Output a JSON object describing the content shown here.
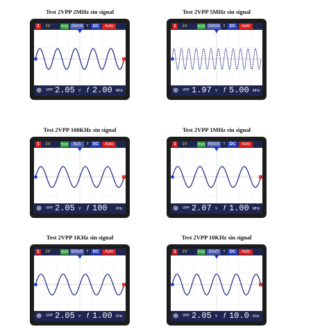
{
  "panels": [
    {
      "title": "Test 2VPP 2MHz sin signal",
      "channel": "1",
      "volts": "1V",
      "run": "RUN",
      "timebase": "250nS",
      "coupling": "DC",
      "trigger": "Auto",
      "vpp": "2.05",
      "freq": "2.00",
      "freq_unit": "MHz",
      "cycles": 5,
      "wave_color": "#1a237e",
      "show_marker": true
    },
    {
      "title": "Test 2VPP 5MHz sin signal",
      "channel": "1",
      "volts": "1V",
      "run": "RUN",
      "timebase": "250nS",
      "coupling": "DC",
      "trigger": "Auto",
      "vpp": "1.97",
      "freq": "5.00",
      "freq_unit": "MHz",
      "cycles": 12,
      "wave_color": "#1a237e",
      "show_marker": false
    },
    {
      "title": "Test 2VPP 100KHz sin signal",
      "channel": "1",
      "volts": "1V",
      "run": "RUN",
      "timebase": "5uS",
      "coupling": "DC",
      "trigger": "Auto",
      "vpp": "2.05",
      "freq": "100",
      "freq_unit": "KHz",
      "cycles": 4,
      "wave_color": "#1a237e",
      "show_marker": true
    },
    {
      "title": "Test 2VPP 1MHz sin signal",
      "channel": "1",
      "volts": "1V",
      "run": "RUN",
      "timebase": "500nS",
      "coupling": "DC",
      "trigger": "Auto",
      "vpp": "2.07",
      "freq": "1.00",
      "freq_unit": "MHz",
      "cycles": 4,
      "wave_color": "#1a237e",
      "show_marker": true
    },
    {
      "title": "Test 2VPP 1KHz sin signal",
      "channel": "1",
      "volts": "1V",
      "run": "RUN",
      "timebase": "500uS",
      "coupling": "DC",
      "trigger": "Auto",
      "vpp": "2.05",
      "freq": "1.00",
      "freq_unit": "KHz",
      "cycles": 4,
      "wave_color": "#1a237e",
      "show_marker": true
    },
    {
      "title": "Test 2VPP 10KHz sin signal",
      "channel": "1",
      "volts": "1V",
      "run": "RUN",
      "timebase": "50uS",
      "coupling": "DC",
      "trigger": "Auto",
      "vpp": "2.05",
      "freq": "10.0",
      "freq_unit": "KHz",
      "cycles": 4.5,
      "wave_color": "#1a237e",
      "show_marker": true
    }
  ],
  "labels": {
    "vpp_label": "VPP",
    "volt_unit": "V",
    "trigger_marker": "T"
  },
  "colors": {
    "device": "#1c1c1c",
    "bars": "#1d2550",
    "grid": "#c8c8c8",
    "wave": "#1a237e",
    "marker_left": "#1f3bd6",
    "marker_right": "#e03030",
    "trigger": "#1f3bd6"
  }
}
